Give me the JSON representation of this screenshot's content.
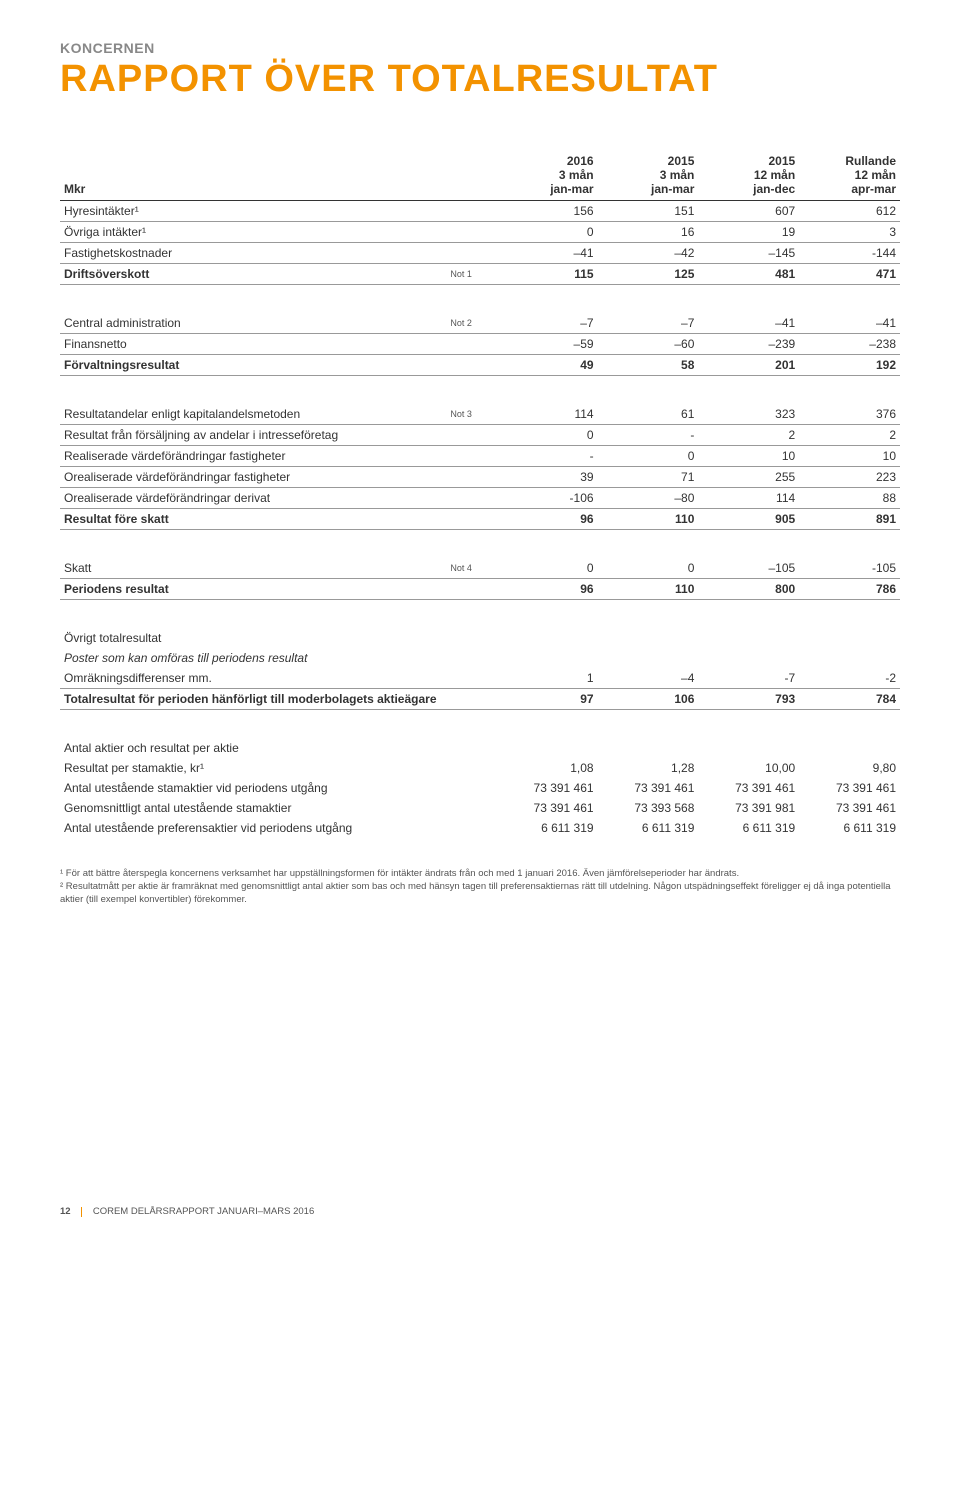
{
  "colors": {
    "accent": "#f39200",
    "text": "#333333",
    "muted": "#888888",
    "background": "#ffffff",
    "rule": "#999999"
  },
  "typography": {
    "body_font": "Arial, Helvetica, sans-serif",
    "body_size_pt": 12,
    "title_size_pt": 38,
    "footnote_size_pt": 9.5
  },
  "header": {
    "pretitle": "KONCERNEN",
    "title": "RAPPORT ÖVER TOTALRESULTAT"
  },
  "table": {
    "caption_label": "Mkr",
    "columns": [
      {
        "l1": "2016",
        "l2": "3 mån",
        "l3": "jan-mar"
      },
      {
        "l1": "2015",
        "l2": "3 mån",
        "l3": "jan-mar"
      },
      {
        "l1": "2015",
        "l2": "12 mån",
        "l3": "jan-dec"
      },
      {
        "l1": "Rullande",
        "l2": "12 mån",
        "l3": "apr-mar"
      }
    ],
    "rows": [
      {
        "label": "Hyresintäkter¹",
        "note": "",
        "v": [
          "156",
          "151",
          "607",
          "612"
        ],
        "style": "underline"
      },
      {
        "label": "Övriga intäkter¹",
        "note": "",
        "v": [
          "0",
          "16",
          "19",
          "3"
        ],
        "style": "underline"
      },
      {
        "label": "Fastighetskostnader",
        "note": "",
        "v": [
          "–41",
          "–42",
          "–145",
          "-144"
        ],
        "style": "underline"
      },
      {
        "label": "Driftsöverskott",
        "note": "Not 1",
        "v": [
          "115",
          "125",
          "481",
          "471"
        ],
        "style": "section-total"
      },
      {
        "spacer": true
      },
      {
        "label": "Central administration",
        "note": "Not 2",
        "v": [
          "–7",
          "–7",
          "–41",
          "–41"
        ],
        "style": "underline"
      },
      {
        "label": "Finansnetto",
        "note": "",
        "v": [
          "–59",
          "–60",
          "–239",
          "–238"
        ],
        "style": "underline"
      },
      {
        "label": "Förvaltningsresultat",
        "note": "",
        "v": [
          "49",
          "58",
          "201",
          "192"
        ],
        "style": "section-total"
      },
      {
        "spacer": true
      },
      {
        "label": "Resultatandelar enligt kapitalandelsmetoden",
        "note": "Not 3",
        "v": [
          "114",
          "61",
          "323",
          "376"
        ],
        "style": "underline"
      },
      {
        "label": "Resultat från försäljning av andelar i intresseföretag",
        "note": "",
        "v": [
          "0",
          "-",
          "2",
          "2"
        ],
        "style": "underline"
      },
      {
        "label": "Realiserade värdeförändringar fastigheter",
        "note": "",
        "v": [
          "-",
          "0",
          "10",
          "10"
        ],
        "style": "underline"
      },
      {
        "label": "Orealiserade värdeförändringar fastigheter",
        "note": "",
        "v": [
          "39",
          "71",
          "255",
          "223"
        ],
        "style": "underline"
      },
      {
        "label": "Orealiserade värdeförändringar derivat",
        "note": "",
        "v": [
          "-106",
          "–80",
          "114",
          "88"
        ],
        "style": "underline"
      },
      {
        "label": "Resultat före skatt",
        "note": "",
        "v": [
          "96",
          "110",
          "905",
          "891"
        ],
        "style": "section-total"
      },
      {
        "spacer": true
      },
      {
        "label": "Skatt",
        "note": "Not 4",
        "v": [
          "0",
          "0",
          "–105",
          "-105"
        ],
        "style": "underline"
      },
      {
        "label": "Periodens resultat",
        "note": "",
        "v": [
          "96",
          "110",
          "800",
          "786"
        ],
        "style": "section-total"
      },
      {
        "spacer": true
      },
      {
        "label": "Övrigt totalresultat",
        "note": "",
        "v": [
          "",
          "",
          "",
          ""
        ],
        "style": "sub-head"
      },
      {
        "label": "Poster som kan omföras till periodens resultat",
        "note": "",
        "v": [
          "",
          "",
          "",
          ""
        ],
        "style": "italic"
      },
      {
        "label": "Omräkningsdifferenser mm.",
        "note": "",
        "v": [
          "1",
          "–4",
          "-7",
          "-2"
        ],
        "style": "underline"
      },
      {
        "label": "Totalresultat för perioden hänförligt till moderbolagets aktieägare",
        "note": "",
        "v": [
          "97",
          "106",
          "793",
          "784"
        ],
        "style": "section-total"
      },
      {
        "spacer": true
      },
      {
        "label": "Antal aktier och resultat per aktie",
        "note": "",
        "v": [
          "",
          "",
          "",
          ""
        ],
        "style": "sub-head"
      },
      {
        "label": "Resultat per stamaktie, kr¹",
        "note": "",
        "v": [
          "1,08",
          "1,28",
          "10,00",
          "9,80"
        ],
        "style": ""
      },
      {
        "label": "Antal utestående stamaktier vid periodens utgång",
        "note": "",
        "v": [
          "73 391 461",
          "73 391 461",
          "73 391 461",
          "73 391 461"
        ],
        "style": ""
      },
      {
        "label": "Genomsnittligt antal utestående stamaktier",
        "note": "",
        "v": [
          "73 391 461",
          "73 393 568",
          "73 391 981",
          "73 391 461"
        ],
        "style": ""
      },
      {
        "label": "Antal utestående preferensaktier vid periodens utgång",
        "note": "",
        "v": [
          "6 611 319",
          "6 611 319",
          "6 611 319",
          "6 611 319"
        ],
        "style": ""
      }
    ]
  },
  "footnotes": {
    "n1": "¹ För att bättre återspegla koncernens verksamhet har uppställningsformen för intäkter ändrats från och med 1 januari 2016. Även jämförelseperioder har ändrats.",
    "n2": "² Resultatmått per aktie är framräknat med genomsnittligt antal aktier som bas och med hänsyn tagen till preferensaktiernas rätt till utdelning. Någon utspädningseffekt föreligger ej då inga potentiella aktier (till exempel konvertibler) förekommer."
  },
  "footer": {
    "page_number": "12",
    "text": "COREM DELÅRSRAPPORT JANUARI–MARS 2016"
  }
}
